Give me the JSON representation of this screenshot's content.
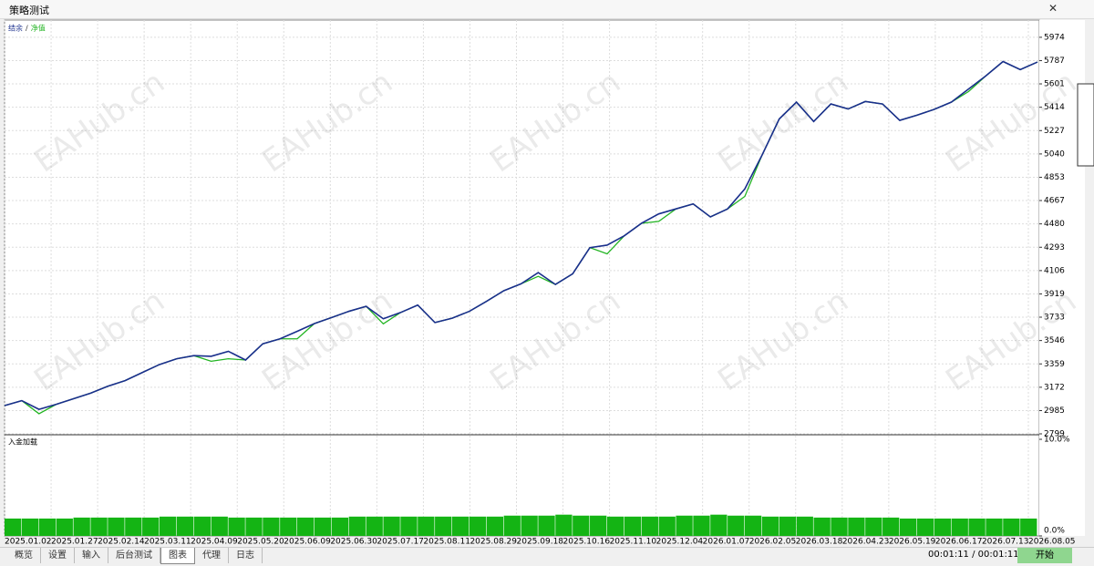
{
  "window": {
    "title": "策略测试",
    "close": "✕"
  },
  "chart_data": [
    {
      "type": "line",
      "legend": [
        "结余",
        "/",
        "净值"
      ],
      "watermark": "EAHub.cn",
      "x_tick_labels": [
        "2025.01.02",
        "2025.01.27",
        "2025.02.14",
        "2025.03.11",
        "2025.04.09",
        "2025.05.20",
        "2025.06.09",
        "2025.06.30",
        "2025.07.17",
        "2025.08.11",
        "2025.08.29",
        "2025.09.18",
        "2025.10.16",
        "2025.11.10",
        "2025.12.04",
        "2026.01.07",
        "2026.02.05",
        "2026.03.18",
        "2026.04.23",
        "2026.05.19",
        "2026.06.17",
        "2026.07.13",
        "2026.08.05"
      ],
      "ylim": [
        2799,
        6112
      ],
      "yticks": [
        2799,
        2985,
        3172,
        3359,
        3546,
        3733,
        3919,
        4106,
        4293,
        4480,
        4667,
        4853,
        5040,
        5227,
        5414,
        5601,
        5787,
        5974
      ],
      "grid": true,
      "series": [
        {
          "name": "净值",
          "color": "#22b422",
          "values": [
            3025,
            3065,
            2960,
            3035,
            3080,
            3125,
            3180,
            3225,
            3290,
            3354,
            3400,
            3425,
            3380,
            3400,
            3390,
            3520,
            3560,
            3560,
            3682,
            3730,
            3780,
            3820,
            3680,
            3770,
            3830,
            3690,
            3725,
            3780,
            3860,
            3945,
            4000,
            4060,
            3995,
            4080,
            4290,
            4240,
            4385,
            4485,
            4500,
            4600,
            4640,
            4536,
            4600,
            4700,
            5030,
            5320,
            5455,
            5300,
            5440,
            5400,
            5460,
            5440,
            5309,
            5350,
            5397,
            5455,
            5540,
            5665,
            5780,
            5715,
            5776
          ]
        },
        {
          "name": "结余",
          "color": "#1a2f8c",
          "values": [
            3025,
            3065,
            2995,
            3035,
            3080,
            3125,
            3180,
            3225,
            3290,
            3354,
            3400,
            3425,
            3420,
            3460,
            3390,
            3520,
            3560,
            3620,
            3682,
            3730,
            3780,
            3820,
            3720,
            3770,
            3830,
            3690,
            3725,
            3780,
            3860,
            3945,
            4000,
            4090,
            3995,
            4080,
            4290,
            4310,
            4385,
            4485,
            4560,
            4600,
            4640,
            4536,
            4600,
            4760,
            5030,
            5320,
            5455,
            5300,
            5440,
            5400,
            5460,
            5440,
            5309,
            5350,
            5397,
            5455,
            5560,
            5665,
            5780,
            5715,
            5776
          ]
        }
      ]
    },
    {
      "type": "bar",
      "title": "入金加载",
      "ylim": [
        0,
        10
      ],
      "yticks": [
        {
          "value": 0,
          "label": "0.0%"
        },
        {
          "value": 10,
          "label": "10.0%"
        }
      ],
      "color": "#14b414",
      "values": [
        1.8,
        1.8,
        1.8,
        1.8,
        1.9,
        1.9,
        1.9,
        1.9,
        1.9,
        2.0,
        2.0,
        2.0,
        2.0,
        1.9,
        1.9,
        1.9,
        1.9,
        1.9,
        1.9,
        1.9,
        2.0,
        2.0,
        2.0,
        2.0,
        2.0,
        2.0,
        2.0,
        2.0,
        2.0,
        2.1,
        2.1,
        2.1,
        2.2,
        2.1,
        2.1,
        2.0,
        2.0,
        2.0,
        2.0,
        2.1,
        2.1,
        2.2,
        2.1,
        2.1,
        2.0,
        2.0,
        2.0,
        1.9,
        1.9,
        1.9,
        1.9,
        1.9,
        1.8,
        1.8,
        1.8,
        1.8,
        1.8,
        1.8,
        1.8,
        1.8
      ]
    }
  ],
  "tabs": [
    "概览",
    "设置",
    "输入",
    "后台测试",
    "图表",
    "代理",
    "日志"
  ],
  "active_tab": 4,
  "timer": "00:01:11 / 00:01:11",
  "start_button": "开始"
}
